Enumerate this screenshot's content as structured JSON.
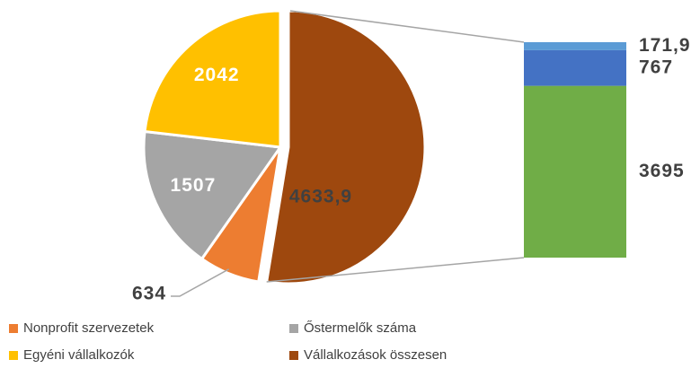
{
  "chart_data": {
    "type": "pie",
    "categories": [
      "Nonprofit szervezetek",
      "Őstermelők száma",
      "Egyéni vállalkozók",
      "Vállalkozások összesen"
    ],
    "values": [
      634,
      1507,
      2042,
      4633.9
    ],
    "value_labels": [
      "634",
      "1507",
      "2042",
      "4633,9"
    ],
    "colors": [
      "#ed7d31",
      "#a5a5a5",
      "#ffc000",
      "#9e480e"
    ],
    "bar": {
      "values": [
        3695,
        767,
        171.9
      ],
      "value_labels": [
        "3695",
        "767",
        "171,9"
      ],
      "colors": [
        "#70ad47",
        "#4472c4",
        "#5b9bd5"
      ]
    }
  }
}
